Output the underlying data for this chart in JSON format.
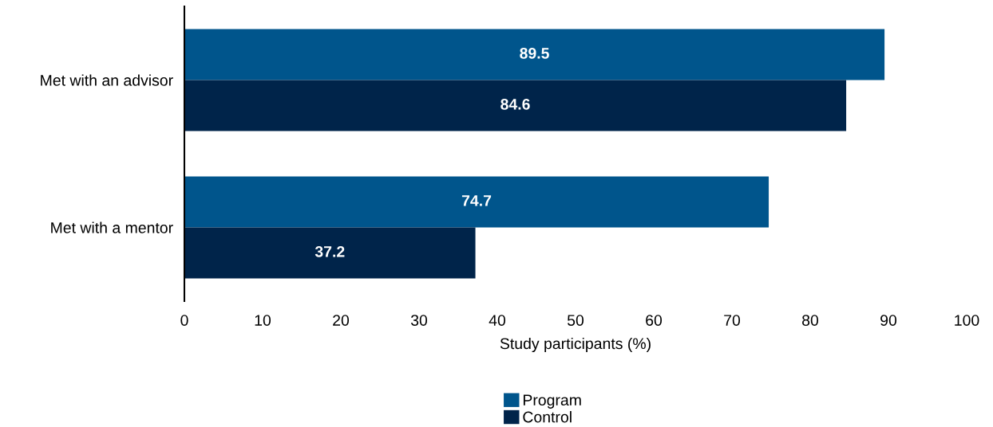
{
  "chart_data": {
    "type": "bar",
    "orientation": "horizontal",
    "xlabel": "Study participants (%)",
    "categories": [
      "Met with an advisor",
      "Met with a mentor"
    ],
    "series": [
      {
        "name": "Program",
        "color": "#00558c",
        "values": [
          89.5,
          74.7
        ]
      },
      {
        "name": "Control",
        "color": "#00244a",
        "values": [
          84.6,
          37.2
        ]
      }
    ],
    "xlim": [
      0,
      100
    ],
    "xticks": [
      0,
      10,
      20,
      30,
      40,
      50,
      60,
      70,
      80,
      90,
      100
    ],
    "data_labels": true,
    "grid": false,
    "legend": "bottom"
  }
}
